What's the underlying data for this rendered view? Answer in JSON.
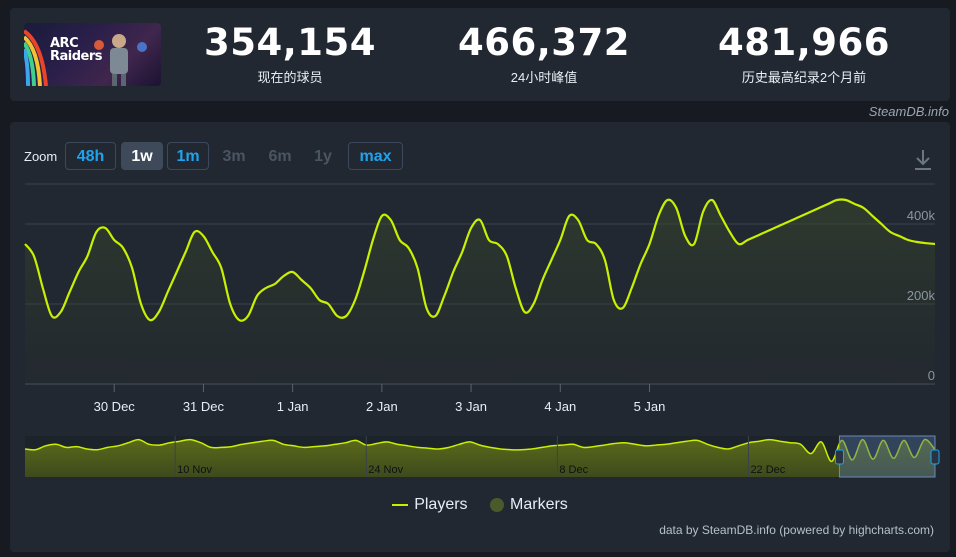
{
  "game": {
    "logo_line1": "ARC",
    "logo_line2": "Raiders"
  },
  "stats": [
    {
      "value": "354,154",
      "label": "现在的球员"
    },
    {
      "value": "466,372",
      "label": "24小时峰值"
    },
    {
      "value": "481,966",
      "label": "历史最高纪录2个月前"
    }
  ],
  "credit_top": "SteamDB.info",
  "zoom": {
    "label": "Zoom",
    "buttons": [
      {
        "label": "48h",
        "state": "enabled"
      },
      {
        "label": "1w",
        "state": "selected"
      },
      {
        "label": "1m",
        "state": "enabled"
      },
      {
        "label": "3m",
        "state": "disabled"
      },
      {
        "label": "6m",
        "state": "disabled"
      },
      {
        "label": "1y",
        "state": "disabled"
      },
      {
        "label": "max",
        "state": "enabled"
      }
    ]
  },
  "legend": {
    "players": "Players",
    "markers": "Markers"
  },
  "credit_bottom": "data by SteamDB.info (powered by highcharts.com)",
  "colors": {
    "series": "#c8f000",
    "accent": "#1ea3ee",
    "panel": "#222831"
  },
  "chart_data": {
    "type": "line",
    "series": [
      {
        "name": "Players",
        "x": [
          29.0,
          29.1,
          29.2,
          29.3,
          29.4,
          29.5,
          29.6,
          29.7,
          29.8,
          29.9,
          30.0,
          30.1,
          30.2,
          30.3,
          30.4,
          30.5,
          30.6,
          30.7,
          30.8,
          30.9,
          31.0,
          31.1,
          31.2,
          31.3,
          31.4,
          31.5,
          31.6,
          31.7,
          31.8,
          31.9,
          32.0,
          32.1,
          32.2,
          32.3,
          32.4,
          32.5,
          32.6,
          32.7,
          32.8,
          32.9,
          33.0,
          33.1,
          33.2,
          33.3,
          33.4,
          33.5,
          33.6,
          33.7,
          33.8,
          33.9,
          34.0,
          34.1,
          34.2,
          34.3,
          34.4,
          34.5,
          34.6,
          34.7,
          34.8,
          34.9,
          35.0,
          35.1,
          35.2,
          35.3,
          35.4,
          35.5,
          35.6,
          35.7,
          35.8,
          35.9,
          36.0,
          36.1,
          36.2,
          36.3,
          36.4,
          36.5,
          36.6,
          36.7,
          36.8,
          36.9,
          37.0,
          37.1,
          37.2,
          37.3,
          37.4,
          37.5,
          37.6,
          37.7,
          37.8,
          37.9,
          38.0,
          38.1,
          38.2,
          38.3,
          38.4,
          38.5,
          38.6,
          38.7,
          38.8,
          38.9,
          39.0,
          39.1,
          39.2
        ],
        "values": [
          350000,
          320000,
          240000,
          170000,
          180000,
          230000,
          280000,
          320000,
          380000,
          390000,
          360000,
          340000,
          290000,
          200000,
          160000,
          180000,
          230000,
          280000,
          330000,
          380000,
          370000,
          330000,
          290000,
          200000,
          160000,
          170000,
          220000,
          240000,
          250000,
          270000,
          280000,
          260000,
          240000,
          210000,
          200000,
          170000,
          170000,
          210000,
          280000,
          360000,
          420000,
          410000,
          360000,
          340000,
          290000,
          190000,
          170000,
          220000,
          280000,
          330000,
          390000,
          410000,
          360000,
          350000,
          320000,
          240000,
          180000,
          200000,
          260000,
          310000,
          360000,
          420000,
          410000,
          360000,
          350000,
          310000,
          210000,
          190000,
          240000,
          300000,
          350000,
          420000,
          460000,
          440000,
          370000,
          350000,
          430000,
          460000,
          420000,
          380000,
          350000,
          360000,
          370000,
          380000,
          390000,
          400000,
          410000,
          420000,
          430000,
          440000,
          450000,
          460000,
          460000,
          450000,
          440000,
          420000,
          400000,
          380000,
          370000,
          360000,
          355000,
          352000,
          350000
        ]
      }
    ],
    "x_ticks": [
      {
        "x": 30,
        "label": "30 Dec"
      },
      {
        "x": 31,
        "label": "31 Dec"
      },
      {
        "x": 32,
        "label": "1 Jan"
      },
      {
        "x": 33,
        "label": "2 Jan"
      },
      {
        "x": 34,
        "label": "3 Jan"
      },
      {
        "x": 35,
        "label": "4 Jan"
      },
      {
        "x": 36,
        "label": "5 Jan"
      }
    ],
    "y_ticks": [
      {
        "value": 0,
        "label": "0"
      },
      {
        "value": 200000,
        "label": "200k"
      },
      {
        "value": 400000,
        "label": "400k"
      }
    ],
    "ylim": [
      0,
      500000
    ],
    "navigator": {
      "ticks": [
        "10 Nov",
        "24 Nov",
        "8 Dec",
        "22 Dec"
      ],
      "values": [
        360000,
        350000,
        400000,
        420000,
        380000,
        390000,
        360000,
        350000,
        380000,
        400000,
        440000,
        480000,
        420000,
        410000,
        440000,
        460000,
        480000,
        440000,
        380000,
        380000,
        390000,
        420000,
        440000,
        460000,
        470000,
        420000,
        400000,
        380000,
        390000,
        400000,
        420000,
        440000,
        470000,
        410000,
        430000,
        450000,
        420000,
        400000,
        380000,
        370000,
        360000,
        380000,
        420000,
        450000,
        410000,
        380000,
        360000,
        350000,
        350000,
        360000,
        380000,
        400000,
        410000,
        420000,
        380000,
        390000,
        410000,
        430000,
        440000,
        420000,
        400000,
        410000,
        420000,
        440000,
        460000,
        470000,
        420000,
        380000,
        360000,
        400000,
        440000,
        460000,
        480000,
        460000,
        440000,
        420000,
        300000,
        450000,
        200000,
        470000,
        220000,
        480000,
        230000,
        470000,
        240000,
        470000,
        250000,
        480000,
        350000
      ],
      "selection_start_fraction": 0.895
    },
    "grid": true,
    "legend_position": "bottom-center"
  }
}
